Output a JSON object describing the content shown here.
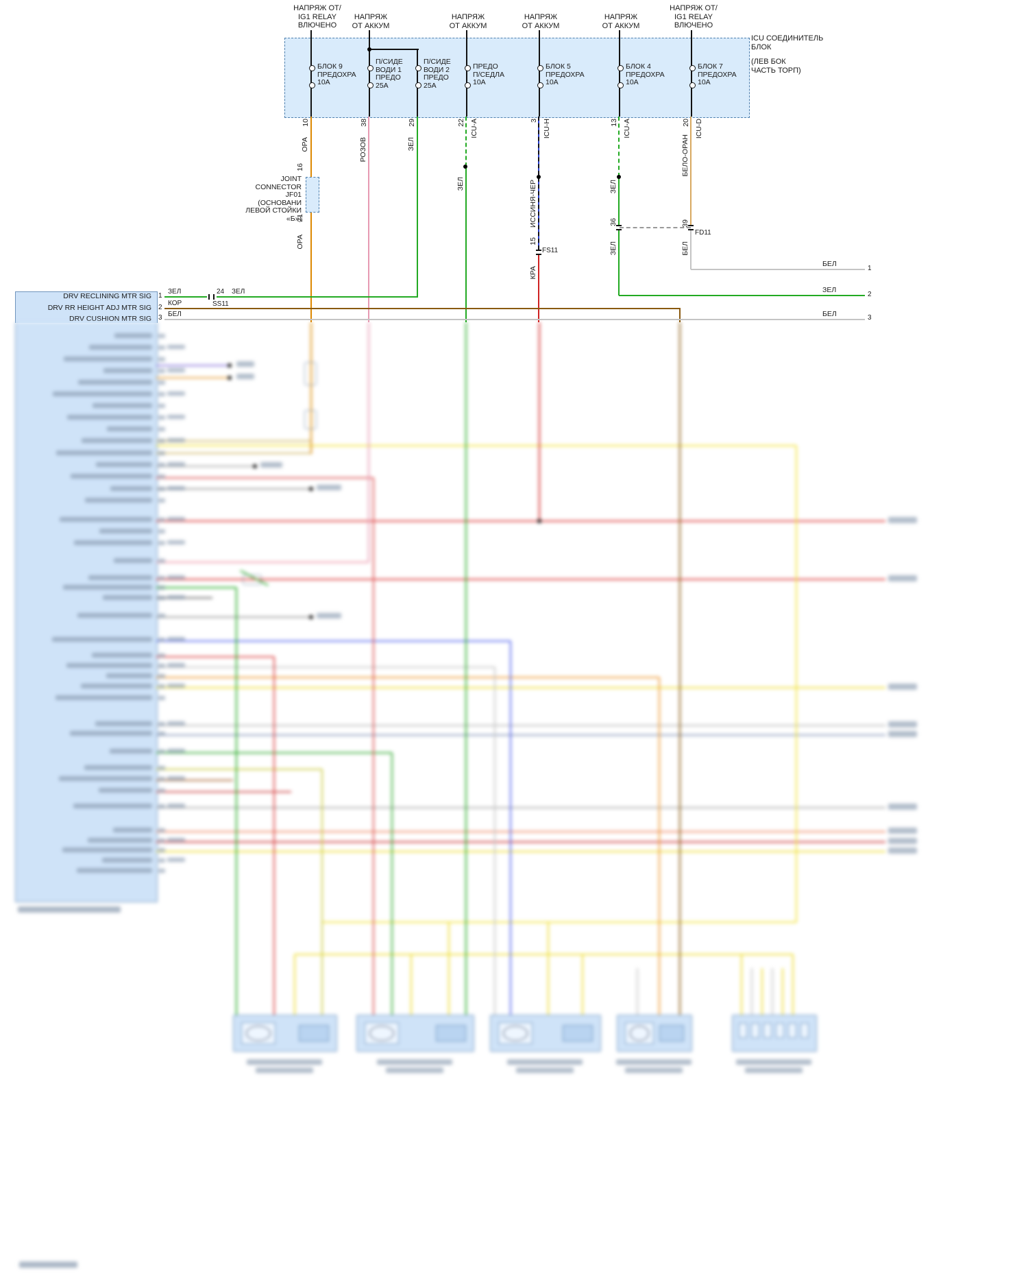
{
  "feeds": [
    "НАПРЯЖ ОТ/\nIG1 RELAY\nВЛЮЧЕНО",
    "НАПРЯЖ\nОТ АККУМ",
    "НАПРЯЖ\nОТ АККУМ",
    "НАПРЯЖ\nОТ АККУМ",
    "НАПРЯЖ\nОТ АККУМ",
    "НАПРЯЖ ОТ/\nIG1 RELAY\nВЛЮЧЕНО"
  ],
  "icu": {
    "title": "ICU СОЕДИНИТЕЛЬ\nБЛОК",
    "subtitle": "(ЛЕВ БОК\nЧАСТЬ ТОРП)"
  },
  "fuses": [
    "БЛОК 9\nПРЕДОХРА\n10А",
    "П/СИДЕ\nВОДИ 1\nПРЕДО\n25А",
    "П/СИДЕ\nВОДИ 2\nПРЕДО\n25А",
    "ПРЕДО\nП/СЕДЛА\n10А",
    "БЛОК 5\nПРЕДОХРА\n10А",
    "БЛОК 4\nПРЕДОХРА\n10А",
    "БЛОК 7\nПРЕДОХРА\n10А"
  ],
  "pins": [
    "10",
    "38",
    "29",
    "22",
    "3",
    "13",
    "20"
  ],
  "icu_pins": [
    "ICU-A",
    "ICU-H",
    "ICU-A",
    "ICU-D"
  ],
  "wire_colors": {
    "ora": "ОРА",
    "rozov": "РОЗОВ",
    "zel": "ЗЕЛ",
    "issinya_cher": "ИССИНЯ-ЧЕР",
    "belo_oran": "БЕЛО-ОРАН",
    "bel": "БЕЛ",
    "kra": "КРА",
    "kor": "КОР"
  },
  "joint": {
    "label": "JOINT\nCONNECTOR\nJF01\n(ОСНОВАНИ\nЛЕВОЙ СТОЙКИ\n«Б»)",
    "pin_top": "16",
    "pin_bottom": "21"
  },
  "fs11": {
    "pin": "15",
    "name": "FS11"
  },
  "fd11": {
    "pin_green": "36",
    "pin_white": "39",
    "name": "FD11"
  },
  "ss11": {
    "pin": "24",
    "name": "SS11"
  },
  "right_rows": [
    {
      "color": "БЕЛ",
      "pin": "1"
    },
    {
      "color": "ЗЕЛ",
      "pin": "2"
    },
    {
      "color": "БЕЛ",
      "pin": "3"
    }
  ],
  "module_rows": [
    {
      "label": "DRV RECLINING MTR SIG",
      "pin": "1",
      "color": "ЗЕЛ"
    },
    {
      "label": "DRV RR HEIGHT ADJ MTR SIG",
      "pin": "2",
      "color": "КОР"
    },
    {
      "label": "DRV CUSHION MTR SIG",
      "pin": "3",
      "color": "БЕЛ"
    }
  ]
}
